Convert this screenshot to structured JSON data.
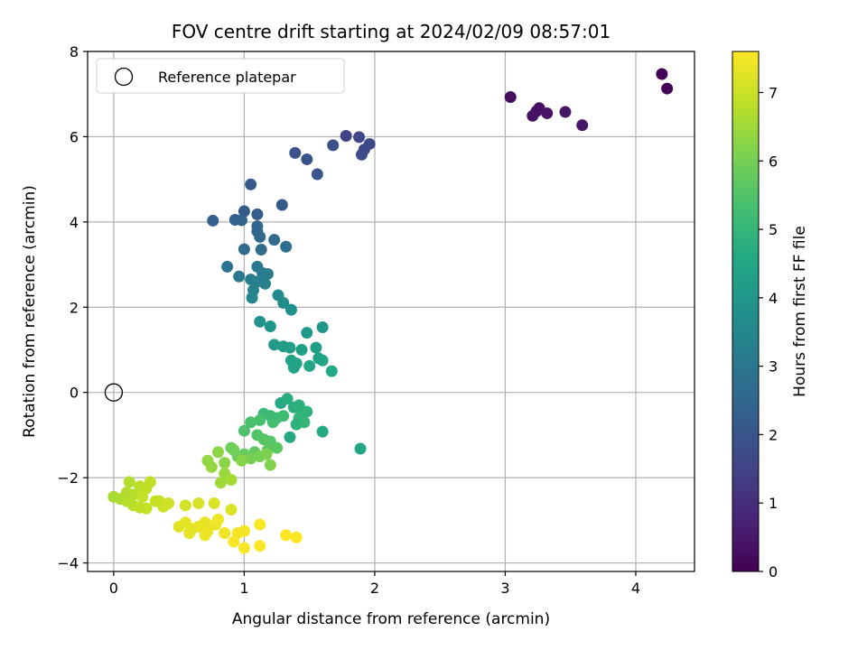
{
  "chart_data": {
    "type": "scatter",
    "title": "FOV centre drift starting at 2024/02/09 08:57:01",
    "xlabel": "Angular distance from reference (arcmin)",
    "ylabel": "Rotation from reference (arcmin)",
    "xlim": [
      -0.2,
      4.45
    ],
    "ylim": [
      -4.2,
      8.0
    ],
    "xticks": [
      0,
      1,
      2,
      3,
      4
    ],
    "yticks": [
      -4,
      -2,
      0,
      2,
      4,
      6,
      8
    ],
    "grid": true,
    "legend": {
      "placement": "top-left",
      "entries": [
        "Reference platepar"
      ]
    },
    "reference_point": {
      "x": 0,
      "y": 0
    },
    "colorbar": {
      "label": "Hours from first FF file",
      "range": [
        0,
        7.6
      ],
      "ticks": [
        0,
        1,
        2,
        3,
        4,
        5,
        6,
        7
      ],
      "colormap": "viridis"
    },
    "series": [
      {
        "points": [
          [
            4.2,
            7.47,
            0.05
          ],
          [
            4.24,
            7.13,
            0.1
          ],
          [
            3.04,
            6.93,
            0.25
          ],
          [
            3.26,
            6.67,
            0.3
          ],
          [
            3.21,
            6.49,
            0.35
          ],
          [
            3.24,
            6.6,
            0.38
          ],
          [
            3.32,
            6.55,
            0.4
          ],
          [
            3.46,
            6.58,
            0.45
          ],
          [
            3.59,
            6.27,
            0.5
          ],
          [
            1.78,
            6.02,
            1.5
          ],
          [
            1.88,
            5.99,
            1.6
          ],
          [
            1.96,
            5.83,
            1.65
          ],
          [
            1.92,
            5.7,
            1.7
          ],
          [
            1.9,
            5.58,
            1.75
          ],
          [
            1.68,
            5.8,
            1.85
          ],
          [
            1.39,
            5.62,
            1.9
          ],
          [
            1.48,
            5.47,
            1.95
          ],
          [
            1.56,
            5.12,
            2.0
          ],
          [
            1.05,
            4.88,
            2.1
          ],
          [
            1.29,
            4.4,
            2.15
          ],
          [
            1.0,
            4.25,
            2.2
          ],
          [
            1.1,
            4.18,
            2.25
          ],
          [
            0.76,
            4.03,
            2.3
          ],
          [
            0.93,
            4.05,
            2.35
          ],
          [
            0.98,
            4.04,
            2.4
          ],
          [
            1.1,
            3.9,
            2.45
          ],
          [
            1.1,
            3.78,
            2.5
          ],
          [
            1.12,
            3.65,
            2.55
          ],
          [
            1.23,
            3.58,
            2.6
          ],
          [
            1.0,
            3.36,
            2.65
          ],
          [
            1.13,
            3.35,
            2.7
          ],
          [
            1.32,
            3.42,
            2.75
          ],
          [
            0.87,
            2.95,
            2.9
          ],
          [
            0.96,
            2.72,
            3.0
          ],
          [
            1.1,
            2.95,
            3.05
          ],
          [
            1.14,
            2.8,
            3.1
          ],
          [
            1.18,
            2.78,
            3.15
          ],
          [
            1.05,
            2.65,
            3.2
          ],
          [
            1.1,
            2.6,
            3.25
          ],
          [
            1.16,
            2.55,
            3.3
          ],
          [
            1.07,
            2.4,
            3.35
          ],
          [
            1.06,
            2.22,
            3.4
          ],
          [
            1.26,
            2.28,
            3.6
          ],
          [
            1.3,
            2.1,
            3.7
          ],
          [
            1.36,
            1.94,
            3.8
          ],
          [
            1.12,
            1.66,
            3.9
          ],
          [
            1.2,
            1.55,
            3.95
          ],
          [
            1.6,
            1.53,
            4.0
          ],
          [
            1.48,
            1.4,
            4.05
          ],
          [
            1.23,
            1.12,
            4.1
          ],
          [
            1.3,
            1.08,
            4.15
          ],
          [
            1.35,
            1.05,
            4.2
          ],
          [
            1.44,
            1.0,
            4.25
          ],
          [
            1.55,
            1.05,
            4.3
          ],
          [
            1.36,
            0.75,
            4.35
          ],
          [
            1.4,
            0.68,
            4.4
          ],
          [
            1.38,
            0.58,
            4.45
          ],
          [
            1.5,
            0.62,
            4.5
          ],
          [
            1.57,
            0.8,
            4.4
          ],
          [
            1.6,
            0.75,
            4.45
          ],
          [
            1.67,
            0.5,
            4.55
          ],
          [
            1.28,
            -0.25,
            4.6
          ],
          [
            1.33,
            -0.15,
            4.7
          ],
          [
            1.38,
            -0.35,
            4.75
          ],
          [
            1.42,
            -0.3,
            4.8
          ],
          [
            1.45,
            -0.5,
            4.85
          ],
          [
            1.48,
            -0.45,
            4.9
          ],
          [
            1.42,
            -0.6,
            4.95
          ],
          [
            1.46,
            -0.7,
            5.0
          ],
          [
            1.4,
            -0.75,
            4.85
          ],
          [
            1.35,
            -1.05,
            4.6
          ],
          [
            1.6,
            -0.92,
            4.6
          ],
          [
            1.89,
            -1.32,
            4.5
          ],
          [
            1.15,
            -0.5,
            5.1
          ],
          [
            1.2,
            -0.55,
            5.15
          ],
          [
            1.25,
            -0.6,
            5.2
          ],
          [
            1.3,
            -0.55,
            5.25
          ],
          [
            1.22,
            -0.7,
            5.3
          ],
          [
            1.12,
            -0.65,
            5.35
          ],
          [
            1.05,
            -0.7,
            5.4
          ],
          [
            1.0,
            -0.9,
            5.45
          ],
          [
            1.1,
            -1.0,
            5.5
          ],
          [
            1.15,
            -1.1,
            5.55
          ],
          [
            1.2,
            -1.15,
            5.6
          ],
          [
            1.25,
            -1.3,
            5.65
          ],
          [
            1.18,
            -1.35,
            5.7
          ],
          [
            1.08,
            -1.4,
            5.75
          ],
          [
            1.0,
            -1.45,
            5.8
          ],
          [
            0.95,
            -1.5,
            5.85
          ],
          [
            0.9,
            -1.3,
            5.9
          ],
          [
            0.92,
            -1.35,
            5.95
          ],
          [
            1.05,
            -1.55,
            6.0
          ],
          [
            1.12,
            -1.5,
            6.05
          ],
          [
            1.17,
            -1.45,
            6.1
          ],
          [
            1.2,
            -1.7,
            6.15
          ],
          [
            0.98,
            -1.6,
            6.2
          ],
          [
            0.85,
            -1.65,
            6.25
          ],
          [
            0.8,
            -1.4,
            6.3
          ],
          [
            0.72,
            -1.6,
            6.35
          ],
          [
            0.75,
            -1.75,
            6.4
          ],
          [
            0.85,
            -1.9,
            6.45
          ],
          [
            0.82,
            -2.12,
            6.5
          ],
          [
            0.9,
            -2.05,
            6.55
          ],
          [
            0.0,
            -2.45,
            6.6
          ],
          [
            0.05,
            -2.5,
            6.65
          ],
          [
            0.1,
            -2.35,
            6.7
          ],
          [
            0.12,
            -2.1,
            6.72
          ],
          [
            0.1,
            -2.55,
            6.75
          ],
          [
            0.15,
            -2.65,
            6.8
          ],
          [
            0.2,
            -2.7,
            6.85
          ],
          [
            0.25,
            -2.72,
            6.9
          ],
          [
            0.15,
            -2.4,
            6.75
          ],
          [
            0.2,
            -2.2,
            6.8
          ],
          [
            0.25,
            -2.25,
            6.85
          ],
          [
            0.28,
            -2.1,
            6.88
          ],
          [
            0.22,
            -2.45,
            6.9
          ],
          [
            0.35,
            -2.55,
            6.95
          ],
          [
            0.38,
            -2.68,
            7.0
          ],
          [
            0.42,
            -2.6,
            7.05
          ],
          [
            0.32,
            -2.55,
            6.95
          ],
          [
            0.55,
            -2.65,
            7.1
          ],
          [
            0.65,
            -2.6,
            7.15
          ],
          [
            0.77,
            -2.6,
            7.2
          ],
          [
            0.9,
            -2.75,
            7.2
          ],
          [
            0.5,
            -3.15,
            7.25
          ],
          [
            0.55,
            -3.05,
            7.3
          ],
          [
            0.6,
            -3.2,
            7.3
          ],
          [
            0.65,
            -3.15,
            7.35
          ],
          [
            0.7,
            -3.05,
            7.35
          ],
          [
            0.72,
            -3.25,
            7.4
          ],
          [
            0.78,
            -3.1,
            7.4
          ],
          [
            0.8,
            -2.98,
            7.45
          ],
          [
            0.85,
            -3.3,
            7.45
          ],
          [
            0.95,
            -3.3,
            7.5
          ],
          [
            1.0,
            -3.25,
            7.5
          ],
          [
            0.92,
            -3.5,
            7.52
          ],
          [
            1.0,
            -3.65,
            7.55
          ],
          [
            1.12,
            -3.1,
            7.55
          ],
          [
            1.12,
            -3.6,
            7.58
          ],
          [
            1.32,
            -3.35,
            7.6
          ],
          [
            1.4,
            -3.4,
            7.6
          ],
          [
            0.7,
            -3.35,
            7.4
          ],
          [
            0.58,
            -3.3,
            7.3
          ]
        ]
      }
    ]
  }
}
